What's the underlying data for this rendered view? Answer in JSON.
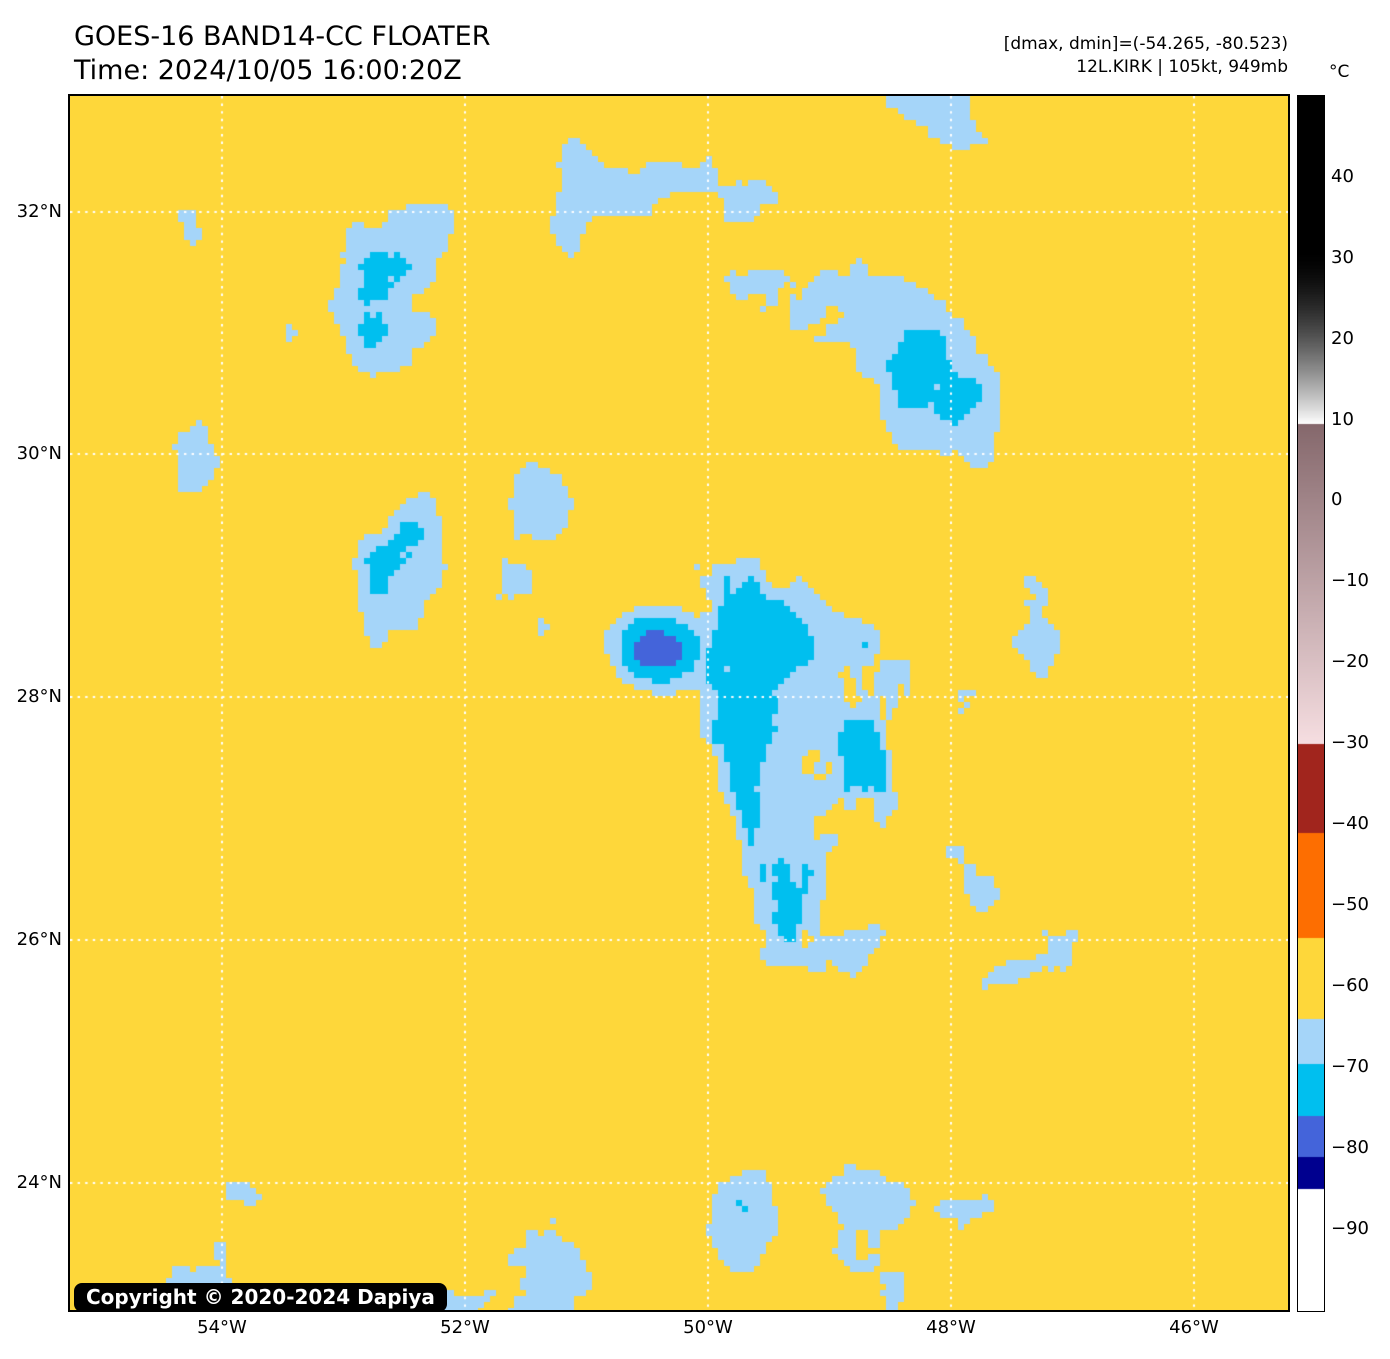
{
  "header": {
    "title": "GOES-16 BAND14-CC FLOATER",
    "time_line": "Time: 2024/10/05 16:00:20Z",
    "dmax_dmin": "[dmax, dmin]=(-54.265, -80.523)",
    "storm_line": "12L.KIRK | 105kt, 949mb"
  },
  "map": {
    "copyright": "Copyright © 2020-2024 Dapiya",
    "lat_labels": [
      "32°N",
      "30°N",
      "28°N",
      "26°N",
      "24°N"
    ],
    "lon_labels": [
      "54°W",
      "52°W",
      "50°W",
      "48°W",
      "46°W"
    ],
    "gridline_color": "#ffffff"
  },
  "colorbar": {
    "unit_label": "°C",
    "ticks": [
      "40",
      "30",
      "20",
      "10",
      "0",
      "−10",
      "−20",
      "−30",
      "−40",
      "−50",
      "−60",
      "−70",
      "−80",
      "−90"
    ],
    "top_temp": 50,
    "bottom_temp": -100,
    "segments": [
      {
        "from": 50,
        "to": 31,
        "color": "#000000"
      },
      {
        "from": 31,
        "to": 9.5,
        "color": "#000000",
        "color2": "#ffffff",
        "gamma": 1.6
      },
      {
        "from": 9.5,
        "to": -30,
        "color": "#85686c",
        "color2": "#f6dee1"
      },
      {
        "from": -30,
        "to": -41,
        "color": "#a1251d"
      },
      {
        "from": -41,
        "to": -54,
        "color": "#fd6e01"
      },
      {
        "from": -54,
        "to": -64,
        "color": "#fed73a"
      },
      {
        "from": -64,
        "to": -69.5,
        "color": "#a5d5f9"
      },
      {
        "from": -69.5,
        "to": -76,
        "color": "#00bfef"
      },
      {
        "from": -76,
        "to": -81,
        "color": "#4464da"
      },
      {
        "from": -81,
        "to": -85,
        "color": "#00008f"
      },
      {
        "from": -85,
        "to": -100,
        "color": "#ffffff"
      }
    ]
  }
}
